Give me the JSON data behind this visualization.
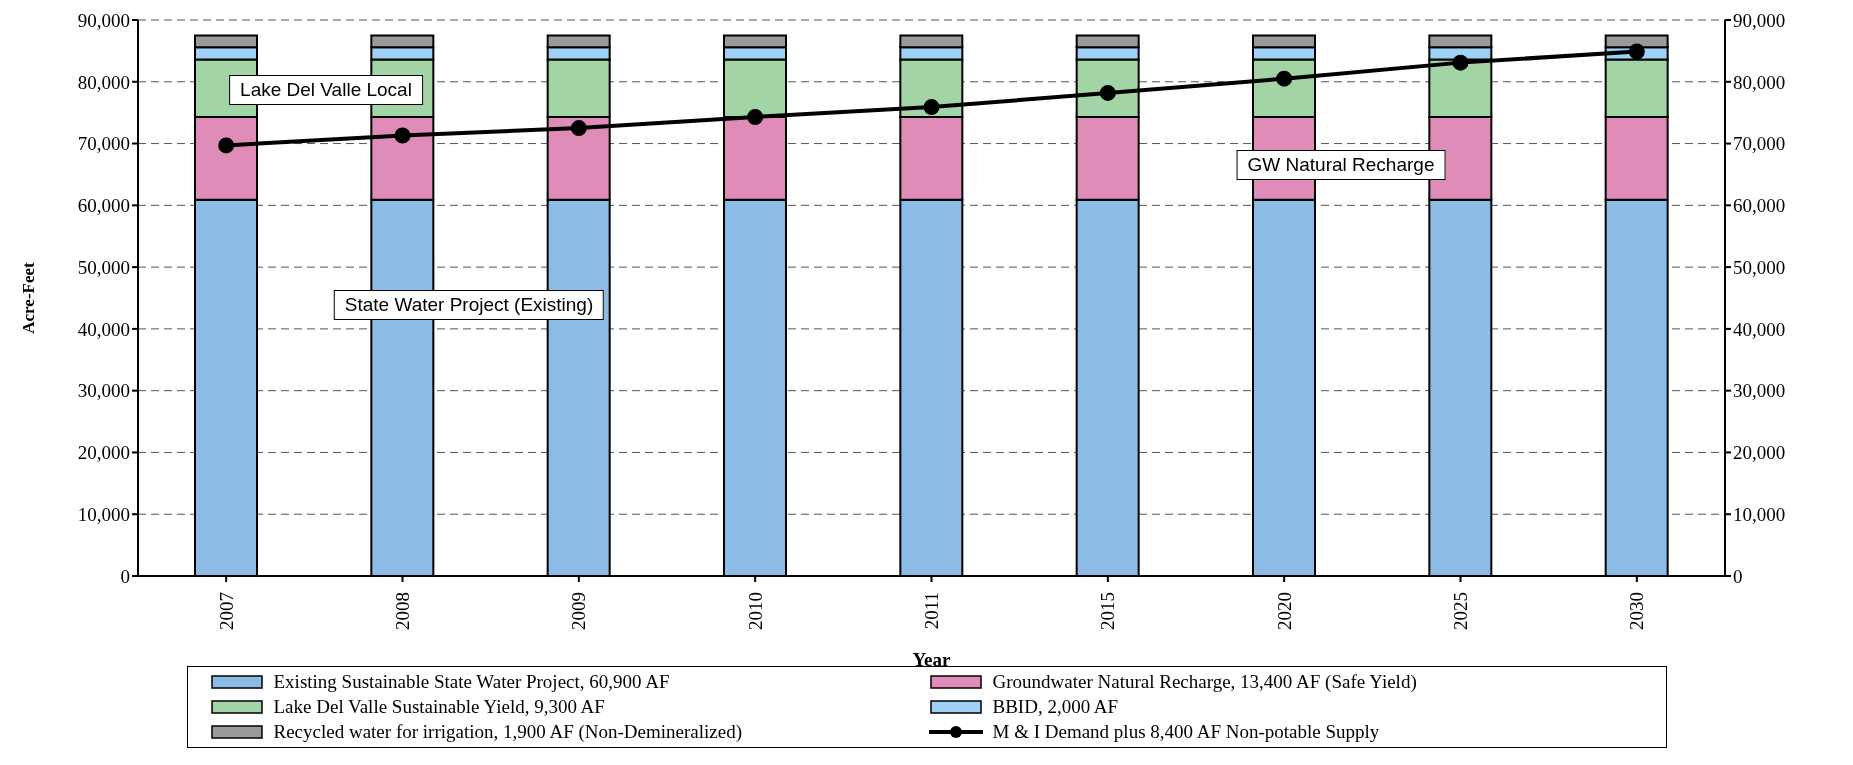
{
  "chart_data": {
    "type": "bar",
    "stacked": true,
    "xlabel": "Year",
    "ylabel": "Acre-Feet",
    "categories": [
      "2007",
      "2008",
      "2009",
      "2010",
      "2011",
      "2015",
      "2020",
      "2025",
      "2030"
    ],
    "series": [
      {
        "name": "Existing Sustainable State Water Project, 60,900 AF",
        "color": "#8cbbe6",
        "values": [
          60900,
          60900,
          60900,
          60900,
          60900,
          60900,
          60900,
          60900,
          60900
        ]
      },
      {
        "name": "Groundwater Natural Recharge, 13,400 AF (Safe Yield)",
        "color": "#e08cb8",
        "values": [
          13400,
          13400,
          13400,
          13400,
          13400,
          13400,
          13400,
          13400,
          13400
        ]
      },
      {
        "name": "Lake Del Valle Sustainable Yield, 9,300 AF",
        "color": "#a3d4a6",
        "values": [
          9300,
          9300,
          9300,
          9300,
          9300,
          9300,
          9300,
          9300,
          9300
        ]
      },
      {
        "name": "BBID, 2,000 AF",
        "color": "#9fd0f5",
        "values": [
          2000,
          2000,
          2000,
          2000,
          2000,
          2000,
          2000,
          2000,
          2000
        ]
      },
      {
        "name": "Recycled water for irrigation, 1,900 AF (Non-Demineralized)",
        "color": "#9a9a9a",
        "values": [
          1900,
          1900,
          1900,
          1900,
          1900,
          1900,
          1900,
          1900,
          1900
        ]
      },
      {
        "name": "M & I Demand plus 8,400 AF Non-potable Supply",
        "type": "line",
        "color": "#000000",
        "values": [
          69700,
          71300,
          72500,
          74300,
          75900,
          78200,
          80500,
          83100,
          84900
        ]
      }
    ],
    "ylim": [
      0,
      90000
    ],
    "yticks": [
      0,
      {
        "value": 10000,
        "label": "10,000"
      },
      {
        "value": 20000,
        "label": "20,000"
      },
      {
        "value": 30000,
        "label": "30,000"
      },
      {
        "value": 40000,
        "label": "40,000"
      },
      {
        "value": 50000,
        "label": "50,000"
      },
      {
        "value": 60000,
        "label": "60,000"
      },
      {
        "value": 70000,
        "label": "70,000"
      },
      {
        "value": 80000,
        "label": "80,000"
      },
      {
        "value": 90000,
        "label": "90,000"
      }
    ],
    "y2lim": [
      0,
      90000
    ],
    "y2ticks": [
      0,
      {
        "value": 10000,
        "label": "10,000"
      },
      {
        "value": 20000,
        "label": "20,000"
      },
      {
        "value": 30000,
        "label": "30,000"
      },
      {
        "value": 40000,
        "label": "40,000"
      },
      {
        "value": 50000,
        "label": "50,000"
      },
      {
        "value": 60000,
        "label": "60,000"
      },
      {
        "value": 70000,
        "label": "70,000"
      },
      {
        "value": 80000,
        "label": "80,000"
      },
      {
        "value": 90000,
        "label": "90,000"
      }
    ],
    "grid": "y",
    "legend": "bottom",
    "marker": "circle",
    "line_style": "solid",
    "annotations": [
      "Lake Del Valle Local",
      "GW Natural Recharge",
      "State Water Project (Existing)"
    ]
  }
}
